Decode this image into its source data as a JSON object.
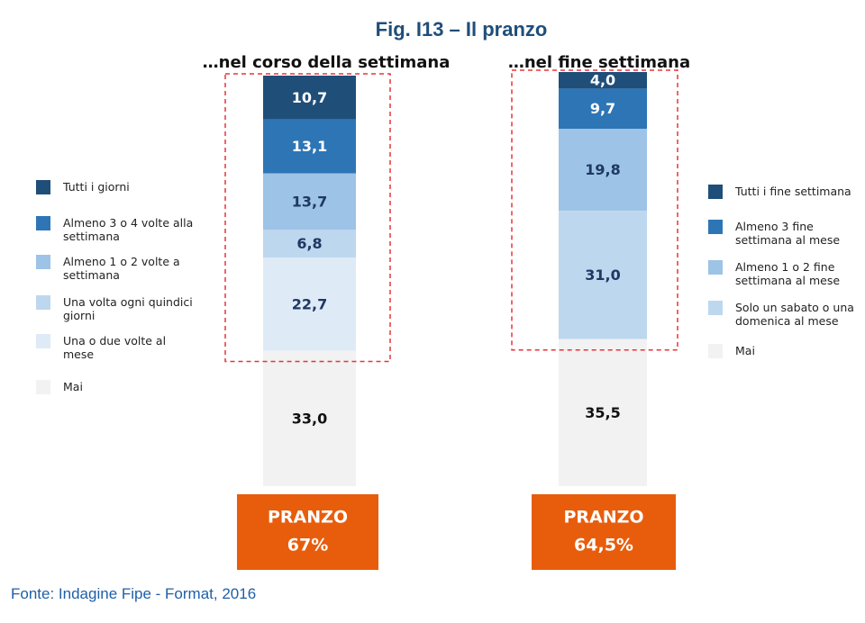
{
  "title": "Fig. I13 – Il pranzo",
  "source": "Fonte: Indagine Fipe - Format, 2016",
  "chart_data": [
    {
      "type": "stacked_bar",
      "title": "…nel corso della settimana",
      "series": [
        {
          "name": "Tutti i giorni",
          "color": "#1f4e79",
          "values": [
            10.7
          ],
          "value_labels": [
            "10,7"
          ]
        },
        {
          "name": "Almeno 3 o 4 volte alla settimana",
          "color": "#2e75b6",
          "values": [
            13.1
          ],
          "value_labels": [
            "13,1"
          ]
        },
        {
          "name": "Almeno 1 o 2 volte a settimana",
          "color": "#9dc3e6",
          "values": [
            13.7
          ],
          "value_labels": [
            "13,7"
          ]
        },
        {
          "name": "Una volta ogni quindici giorni",
          "color": "#bdd7ee",
          "values": [
            6.8
          ],
          "value_labels": [
            "6,8"
          ]
        },
        {
          "name": "Una o due volte al mese",
          "color": "#deebf7",
          "values": [
            22.7
          ],
          "value_labels": [
            "22,7"
          ]
        },
        {
          "name": "Mai",
          "color": "#f2f2f2",
          "values": [
            33.0
          ],
          "value_labels": [
            "33,0"
          ]
        }
      ],
      "total": {
        "label": "PRANZO",
        "value": 67,
        "value_label": "67%"
      }
    },
    {
      "type": "stacked_bar",
      "title": "…nel fine settimana",
      "series": [
        {
          "name": "Tutti i fine settimana",
          "color": "#1f4e79",
          "values": [
            4.0
          ],
          "value_labels": [
            "4,0"
          ]
        },
        {
          "name": "Almeno 3 fine settimana al mese",
          "color": "#2e75b6",
          "values": [
            9.7
          ],
          "value_labels": [
            "9,7"
          ]
        },
        {
          "name": "Almeno 1 o 2 fine settimana al mese",
          "color": "#9dc3e6",
          "values": [
            19.8
          ],
          "value_labels": [
            "19,8"
          ]
        },
        {
          "name": "Solo un sabato o una domenica al mese",
          "color": "#bdd7ee",
          "values": [
            31.0
          ],
          "value_labels": [
            "31,0"
          ]
        },
        {
          "name": "Mai",
          "color": "#f2f2f2",
          "values": [
            35.5
          ],
          "value_labels": [
            "35,5"
          ]
        }
      ],
      "total": {
        "label": "PRANZO",
        "value": 64.5,
        "value_label": "64,5%"
      }
    }
  ]
}
